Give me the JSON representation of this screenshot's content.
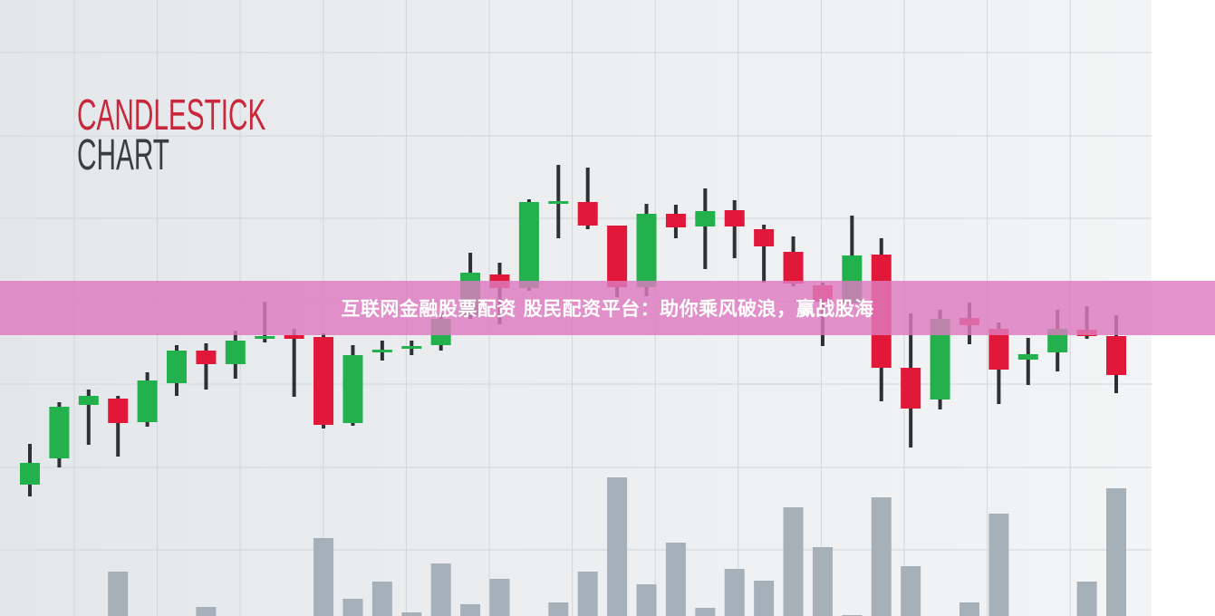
{
  "banner": {
    "text": "互联网金融股票配资 股民配资平台：助你乘风破浪，赢战股海",
    "color": "#de7ac0"
  },
  "chart_data": {
    "type": "candlestick",
    "title": "CANDLESTICK",
    "subtitle": "CHART",
    "title_color": "#c8283c",
    "subtitle_color": "#3a3d42",
    "grid": true,
    "axes_labels_shown": false,
    "colors": {
      "up": "#22b14c",
      "down": "#e2183a",
      "wick": "#2e3035",
      "volume": "#a6b0b8"
    },
    "candles": [
      {
        "o": 13,
        "h": 22,
        "l": 10.4,
        "c": 17.8
      },
      {
        "o": 18.8,
        "h": 31.2,
        "l": 16.8,
        "c": 30.2
      },
      {
        "o": 30.6,
        "h": 34,
        "l": 21.8,
        "c": 32.6
      },
      {
        "o": 32,
        "h": 32.6,
        "l": 19.2,
        "c": 26.6
      },
      {
        "o": 26.8,
        "h": 37.8,
        "l": 25.8,
        "c": 36
      },
      {
        "o": 35.4,
        "h": 43.8,
        "l": 32.6,
        "c": 42.6
      },
      {
        "o": 42.6,
        "h": 44.2,
        "l": 34,
        "c": 39.6
      },
      {
        "o": 39.6,
        "h": 47,
        "l": 36.4,
        "c": 44.8
      },
      {
        "o": 45.2,
        "h": 53.4,
        "l": 44.4,
        "c": 45.8
      },
      {
        "o": 46,
        "h": 47.4,
        "l": 32.4,
        "c": 45.2
      },
      {
        "o": 45.6,
        "h": 46.4,
        "l": 25.4,
        "c": 26.2
      },
      {
        "o": 26.6,
        "h": 43.8,
        "l": 26,
        "c": 41.6
      },
      {
        "o": 42.2,
        "h": 44.8,
        "l": 40.4,
        "c": 42.8
      },
      {
        "o": 43,
        "h": 44.8,
        "l": 41.6,
        "c": 43.6
      },
      {
        "o": 43.8,
        "h": 51,
        "l": 42.6,
        "c": 49.6
      },
      {
        "o": 50.4,
        "h": 64.2,
        "l": 49.6,
        "c": 59.8
      },
      {
        "o": 59.4,
        "h": 62,
        "l": 48.4,
        "c": 56.4
      },
      {
        "o": 56.4,
        "h": 76,
        "l": 55.8,
        "c": 75.4
      },
      {
        "o": 75.2,
        "h": 83.6,
        "l": 67.4,
        "c": 75.6
      },
      {
        "o": 75.4,
        "h": 83,
        "l": 69.4,
        "c": 70.2
      },
      {
        "o": 70.2,
        "h": 70.2,
        "l": 54.4,
        "c": 56.6
      },
      {
        "o": 56.6,
        "h": 75,
        "l": 54.6,
        "c": 72.8
      },
      {
        "o": 72.8,
        "h": 74.8,
        "l": 67.4,
        "c": 69.8
      },
      {
        "o": 70,
        "h": 78.4,
        "l": 60.6,
        "c": 73.4
      },
      {
        "o": 73.6,
        "h": 75.8,
        "l": 63,
        "c": 70
      },
      {
        "o": 69.4,
        "h": 70.4,
        "l": 57.6,
        "c": 65.6
      },
      {
        "o": 64.4,
        "h": 67.8,
        "l": 56.8,
        "c": 57.4
      },
      {
        "o": 57,
        "h": 57.6,
        "l": 43.6,
        "c": 53.4
      },
      {
        "o": 53,
        "h": 72.4,
        "l": 53,
        "c": 63.6
      },
      {
        "o": 63.8,
        "h": 67.4,
        "l": 31.4,
        "c": 38.8
      },
      {
        "o": 38.8,
        "h": 50.8,
        "l": 21.2,
        "c": 29.8
      },
      {
        "o": 31.8,
        "h": 51.6,
        "l": 29.6,
        "c": 49.6
      },
      {
        "o": 49.8,
        "h": 53.2,
        "l": 44,
        "c": 48.2
      },
      {
        "o": 47.4,
        "h": 48.8,
        "l": 30.8,
        "c": 38.4
      },
      {
        "o": 40.6,
        "h": 45.4,
        "l": 35,
        "c": 41.8
      },
      {
        "o": 42.2,
        "h": 51.6,
        "l": 38,
        "c": 47.4
      },
      {
        "o": 47.2,
        "h": 52.4,
        "l": 45.2,
        "c": 45.8
      },
      {
        "o": 45.8,
        "h": 50.4,
        "l": 33.2,
        "c": 37.2
      }
    ],
    "volume": [
      0,
      0,
      0,
      49,
      0,
      0,
      10,
      0,
      0,
      0,
      86,
      19,
      38,
      4,
      58,
      13,
      41,
      0,
      15,
      49,
      153,
      35,
      81,
      9,
      52,
      39,
      120,
      76,
      1,
      131,
      55,
      0,
      15,
      113,
      0,
      0,
      38,
      141
    ]
  }
}
